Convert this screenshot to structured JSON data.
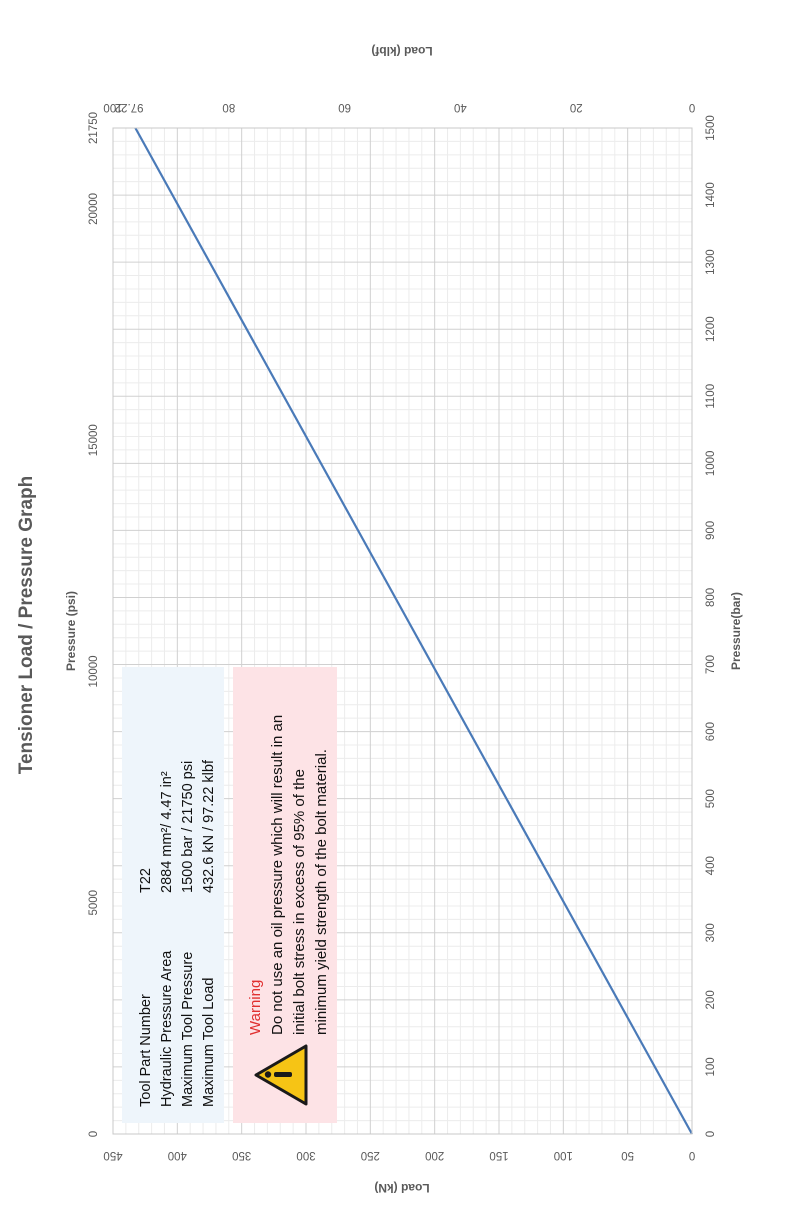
{
  "chart_data": {
    "type": "line",
    "title": "Tensioner Load / Pressure Graph",
    "axes": {
      "pressure_bar": {
        "label": "Pressure(bar)",
        "range": [
          0,
          1500
        ],
        "ticks": [
          0,
          100,
          200,
          300,
          400,
          500,
          600,
          700,
          800,
          900,
          1000,
          1100,
          1200,
          1300,
          1400,
          1500
        ]
      },
      "pressure_psi": {
        "label": "Pressure (psi)",
        "range": [
          0,
          21750
        ],
        "ticks": [
          0,
          5000,
          10000,
          15000,
          20000,
          21750
        ]
      },
      "load_kn": {
        "label": "Load (kN)",
        "range": [
          0,
          450
        ],
        "ticks": [
          0,
          50,
          100,
          150,
          200,
          250,
          300,
          350,
          400,
          450
        ]
      },
      "load_klbf": {
        "label": "Load (klbf)",
        "range": [
          0,
          100
        ],
        "ticks": [
          0,
          20,
          40,
          60,
          80,
          100
        ],
        "extra_tick": 97.22
      }
    },
    "series": [
      {
        "x": [
          0,
          1500
        ],
        "y": [
          0,
          432.6
        ],
        "color": "#4a7ab8"
      }
    ],
    "grid": true
  },
  "info_box": {
    "rows": [
      {
        "label": "Tool Part Number",
        "value": "T22"
      },
      {
        "label": "Hydraulic Pressure Area",
        "value": "2884 mm²/ 4.47 in²"
      },
      {
        "label": "Maximum Tool Pressure",
        "value": "1500 bar / 21750 psi"
      },
      {
        "label": "Maximum Tool Load",
        "value": "432.6 kN / 97.22 klbf"
      }
    ]
  },
  "warning_box": {
    "title": "Warning",
    "lines": [
      "Do not use an oil pressure which will result in an",
      "initial bolt stress in excess of 95% of the",
      "minimum yield strength of the bolt material."
    ],
    "icon": "warning-triangle-icon"
  },
  "colors": {
    "line": "#4a7ab8",
    "grid_major": "#d0d0d0",
    "grid_minor": "#ececec",
    "warning_bg": "#fde3e6",
    "info_bg": "#eef5fb",
    "warning_title": "#e03030",
    "icon_fill": "#f6c415"
  }
}
